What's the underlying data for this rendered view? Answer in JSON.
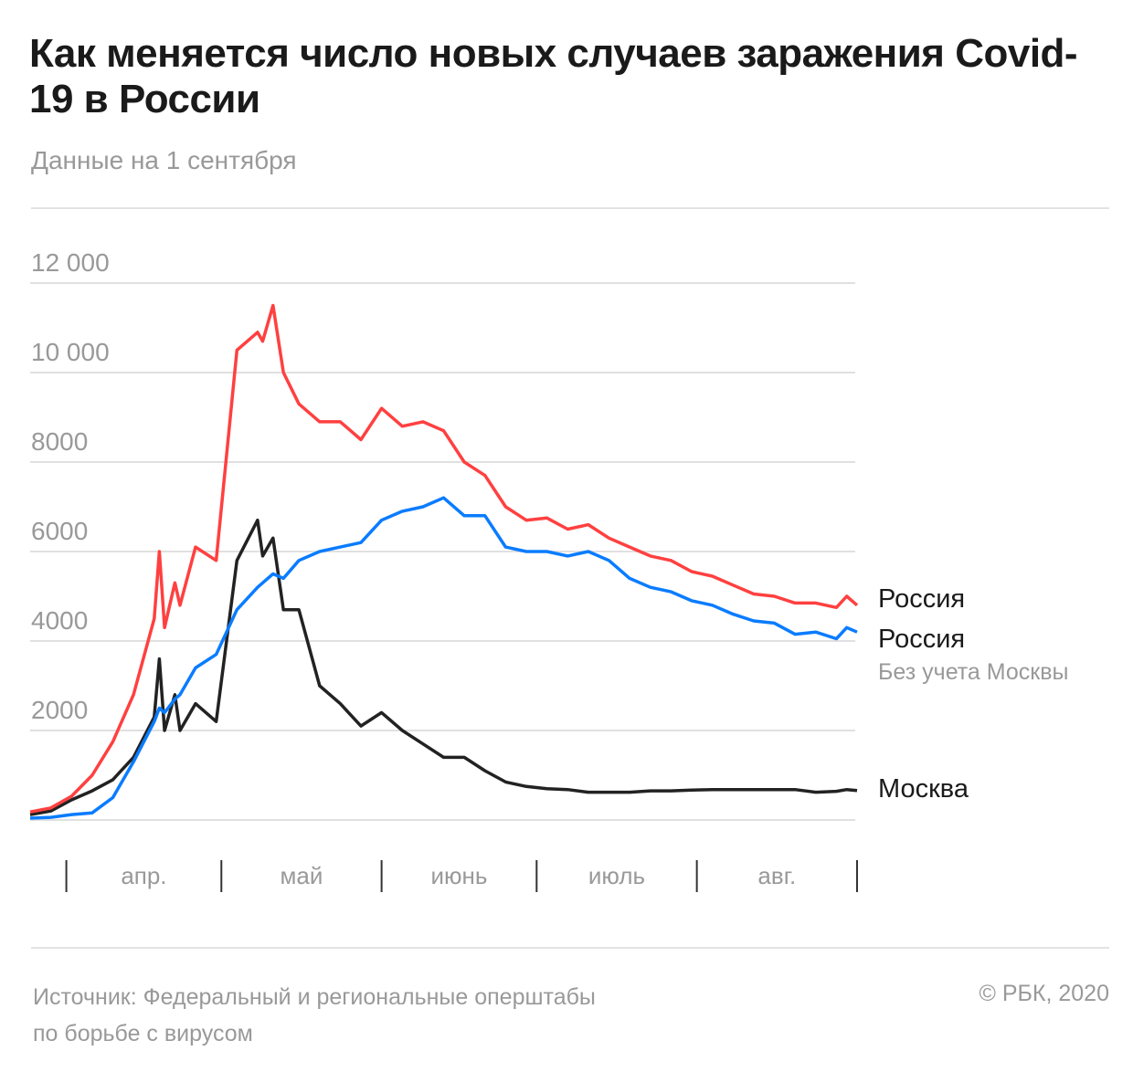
{
  "header": {
    "title": "Как меняется число новых случаев заражения Covid-19 в России",
    "subtitle": "Данные на 1 сентября"
  },
  "footer": {
    "source_line1": "Источник: Федеральный и региональные оперштабы",
    "source_line2": "по борьбе с вирусом",
    "copyright": "© РБК, 2020"
  },
  "chart_data": {
    "type": "line",
    "title": "Как меняется число новых случаев заражения Covid-19 в России",
    "subtitle": "Данные на 1 сентября",
    "ylim": [
      0,
      12000
    ],
    "yticks": [
      2000,
      4000,
      6000,
      8000,
      10000,
      12000
    ],
    "ytick_labels": [
      "2000",
      "4000",
      "6000",
      "8000",
      "10 000",
      "12 000"
    ],
    "xlim": [
      "2020-03-25",
      "2020-09-01"
    ],
    "month_boundaries": [
      "2020-04-01",
      "2020-05-01",
      "2020-06-01",
      "2020-07-01",
      "2020-08-01",
      "2020-09-01"
    ],
    "month_labels": [
      "апр.",
      "май",
      "июнь",
      "июль",
      "авг."
    ],
    "grid": true,
    "legend": "right-end labels",
    "x": [
      "2020-03-25",
      "2020-03-29",
      "2020-04-02",
      "2020-04-06",
      "2020-04-10",
      "2020-04-14",
      "2020-04-18",
      "2020-04-19",
      "2020-04-20",
      "2020-04-22",
      "2020-04-23",
      "2020-04-26",
      "2020-04-30",
      "2020-05-04",
      "2020-05-08",
      "2020-05-09",
      "2020-05-11",
      "2020-05-13",
      "2020-05-16",
      "2020-05-20",
      "2020-05-24",
      "2020-05-28",
      "2020-06-01",
      "2020-06-05",
      "2020-06-09",
      "2020-06-13",
      "2020-06-17",
      "2020-06-21",
      "2020-06-25",
      "2020-06-29",
      "2020-07-03",
      "2020-07-07",
      "2020-07-11",
      "2020-07-15",
      "2020-07-19",
      "2020-07-23",
      "2020-07-27",
      "2020-07-31",
      "2020-08-04",
      "2020-08-08",
      "2020-08-12",
      "2020-08-16",
      "2020-08-20",
      "2020-08-24",
      "2020-08-28",
      "2020-08-30",
      "2020-09-01"
    ],
    "series": [
      {
        "name": "Россия",
        "color": "#ff4040",
        "values": [
          180,
          270,
          530,
          1000,
          1750,
          2800,
          4500,
          6000,
          4300,
          5300,
          4800,
          6100,
          5800,
          10500,
          10900,
          10700,
          11500,
          10000,
          9300,
          8900,
          8900,
          8500,
          9200,
          8800,
          8900,
          8700,
          8000,
          7700,
          7000,
          6700,
          6750,
          6500,
          6600,
          6300,
          6100,
          5900,
          5800,
          5550,
          5450,
          5250,
          5050,
          5000,
          4850,
          4850,
          4750,
          5000,
          4800
        ]
      },
      {
        "name": "Россия",
        "sublabel": "Без учета Москвы",
        "color": "#0a7cff",
        "values": [
          40,
          60,
          120,
          160,
          500,
          1300,
          2200,
          2500,
          2400,
          2700,
          2800,
          3400,
          3700,
          4700,
          5200,
          5300,
          5500,
          5400,
          5800,
          6000,
          6100,
          6200,
          6700,
          6900,
          7000,
          7200,
          6800,
          6800,
          6100,
          6000,
          6000,
          5900,
          6000,
          5800,
          5400,
          5200,
          5100,
          4900,
          4800,
          4600,
          4450,
          4400,
          4150,
          4200,
          4050,
          4300,
          4200
        ]
      },
      {
        "name": "Москва",
        "color": "#222222",
        "values": [
          120,
          200,
          450,
          650,
          900,
          1400,
          2300,
          3600,
          2000,
          2800,
          2000,
          2600,
          2200,
          5800,
          6700,
          5900,
          6300,
          4700,
          4700,
          3000,
          2600,
          2100,
          2400,
          2000,
          1700,
          1400,
          1400,
          1100,
          850,
          750,
          700,
          680,
          620,
          620,
          620,
          650,
          650,
          670,
          680,
          680,
          680,
          680,
          680,
          620,
          640,
          680,
          660
        ]
      }
    ]
  }
}
